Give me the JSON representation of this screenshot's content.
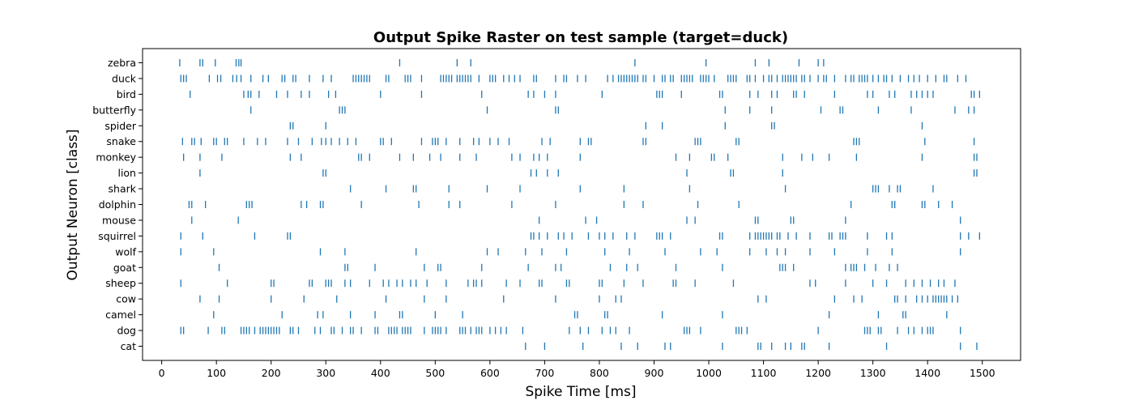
{
  "chart_data": {
    "type": "scatter",
    "title": "Output Spike Raster on test sample (target=duck)",
    "xlabel": "Spike Time [ms]",
    "ylabel": "Output Neuron [class]",
    "xlim": [
      -35,
      1570
    ],
    "xticks": [
      0,
      100,
      200,
      300,
      400,
      500,
      600,
      700,
      800,
      900,
      1000,
      1100,
      1200,
      1300,
      1400,
      1500
    ],
    "categories": [
      "cat",
      "dog",
      "camel",
      "cow",
      "sheep",
      "goat",
      "wolf",
      "squirrel",
      "mouse",
      "dolphin",
      "shark",
      "lion",
      "monkey",
      "snake",
      "spider",
      "butterfly",
      "bird",
      "duck",
      "zebra"
    ],
    "grid": false,
    "color": "#1f77b4",
    "marker": "vertical tick",
    "series": [
      {
        "category": "zebra",
        "x": [
          33,
          70,
          75,
          98,
          136,
          141,
          145,
          435,
          540,
          565,
          865,
          995,
          1085,
          1110,
          1165,
          1200,
          1210
        ]
      },
      {
        "category": "duck",
        "x": [
          35,
          40,
          45,
          87,
          102,
          108,
          130,
          137,
          145,
          163,
          185,
          195,
          220,
          225,
          240,
          245,
          270,
          295,
          310,
          350,
          355,
          360,
          365,
          370,
          375,
          380,
          410,
          415,
          445,
          450,
          455,
          475,
          510,
          515,
          520,
          525,
          530,
          540,
          545,
          550,
          555,
          560,
          565,
          580,
          600,
          605,
          610,
          625,
          635,
          645,
          655,
          680,
          685,
          720,
          735,
          740,
          760,
          775,
          815,
          825,
          835,
          840,
          845,
          850,
          855,
          860,
          865,
          870,
          880,
          885,
          900,
          915,
          920,
          930,
          935,
          950,
          955,
          960,
          965,
          970,
          985,
          990,
          995,
          1000,
          1010,
          1035,
          1040,
          1045,
          1050,
          1070,
          1075,
          1085,
          1100,
          1110,
          1115,
          1125,
          1135,
          1140,
          1145,
          1150,
          1155,
          1160,
          1170,
          1175,
          1185,
          1200,
          1210,
          1215,
          1230,
          1250,
          1260,
          1265,
          1275,
          1280,
          1285,
          1290,
          1300,
          1310,
          1320,
          1325,
          1335,
          1350,
          1365,
          1375,
          1385,
          1400,
          1415,
          1430,
          1435,
          1455,
          1470
        ]
      },
      {
        "category": "bird",
        "x": [
          52,
          150,
          158,
          163,
          178,
          210,
          230,
          255,
          270,
          305,
          318,
          400,
          475,
          585,
          670,
          680,
          700,
          720,
          805,
          905,
          910,
          915,
          950,
          1020,
          1025,
          1075,
          1090,
          1115,
          1125,
          1155,
          1160,
          1175,
          1230,
          1290,
          1300,
          1330,
          1340,
          1370,
          1380,
          1390,
          1400,
          1410,
          1480,
          1485,
          1495
        ]
      },
      {
        "category": "butterfly",
        "x": [
          163,
          325,
          330,
          335,
          595,
          720,
          725,
          1030,
          1075,
          1115,
          1205,
          1240,
          1245,
          1310,
          1370,
          1450,
          1475,
          1485
        ]
      },
      {
        "category": "spider",
        "x": [
          235,
          240,
          300,
          885,
          915,
          1030,
          1115,
          1120,
          1390
        ]
      },
      {
        "category": "snake",
        "x": [
          38,
          55,
          60,
          72,
          95,
          100,
          115,
          120,
          150,
          175,
          190,
          230,
          250,
          275,
          292,
          300,
          310,
          325,
          340,
          355,
          400,
          405,
          420,
          475,
          495,
          500,
          505,
          520,
          545,
          570,
          580,
          600,
          615,
          635,
          695,
          710,
          765,
          780,
          785,
          880,
          885,
          975,
          980,
          985,
          1050,
          1055,
          1265,
          1270,
          1275,
          1395,
          1485
        ]
      },
      {
        "category": "monkey",
        "x": [
          40,
          70,
          110,
          235,
          255,
          360,
          365,
          380,
          435,
          460,
          490,
          510,
          545,
          575,
          640,
          655,
          680,
          690,
          705,
          765,
          940,
          965,
          1005,
          1010,
          1035,
          1135,
          1170,
          1190,
          1220,
          1270,
          1390,
          1485,
          1490
        ]
      },
      {
        "category": "lion",
        "x": [
          70,
          295,
          300,
          675,
          685,
          705,
          725,
          960,
          1040,
          1045,
          1135,
          1485,
          1490
        ]
      },
      {
        "category": "shark",
        "x": [
          345,
          410,
          460,
          465,
          525,
          595,
          655,
          765,
          845,
          965,
          1140,
          1300,
          1305,
          1310,
          1330,
          1345,
          1350,
          1410
        ]
      },
      {
        "category": "dolphin",
        "x": [
          50,
          55,
          80,
          155,
          160,
          165,
          255,
          265,
          290,
          295,
          365,
          470,
          525,
          545,
          640,
          720,
          845,
          880,
          980,
          1055,
          1260,
          1335,
          1340,
          1390,
          1395,
          1420,
          1445
        ]
      },
      {
        "category": "mouse",
        "x": [
          55,
          140,
          690,
          775,
          795,
          960,
          975,
          1085,
          1090,
          1150,
          1155,
          1250,
          1460
        ]
      },
      {
        "category": "squirrel",
        "x": [
          35,
          75,
          170,
          230,
          235,
          675,
          680,
          690,
          705,
          725,
          735,
          750,
          780,
          800,
          810,
          825,
          850,
          865,
          905,
          910,
          915,
          930,
          1020,
          1025,
          1075,
          1085,
          1090,
          1095,
          1100,
          1105,
          1110,
          1115,
          1125,
          1130,
          1145,
          1160,
          1185,
          1220,
          1225,
          1240,
          1245,
          1250,
          1290,
          1325,
          1335,
          1460,
          1475,
          1495
        ]
      },
      {
        "category": "wolf",
        "x": [
          35,
          95,
          290,
          335,
          465,
          595,
          615,
          665,
          695,
          740,
          810,
          855,
          920,
          985,
          1015,
          1075,
          1105,
          1125,
          1140,
          1185,
          1230,
          1290,
          1335,
          1460
        ]
      },
      {
        "category": "goat",
        "x": [
          105,
          335,
          340,
          390,
          480,
          505,
          510,
          585,
          670,
          720,
          730,
          820,
          850,
          870,
          940,
          1025,
          1130,
          1135,
          1140,
          1155,
          1250,
          1260,
          1265,
          1270,
          1285,
          1305,
          1330,
          1345
        ]
      },
      {
        "category": "sheep",
        "x": [
          35,
          120,
          200,
          205,
          270,
          275,
          300,
          305,
          310,
          335,
          345,
          380,
          405,
          415,
          430,
          440,
          455,
          465,
          485,
          520,
          560,
          570,
          575,
          585,
          630,
          655,
          690,
          695,
          740,
          745,
          800,
          805,
          845,
          880,
          935,
          940,
          975,
          1045,
          1185,
          1195,
          1250,
          1300,
          1325,
          1360,
          1375,
          1390,
          1405,
          1420,
          1430,
          1450
        ]
      },
      {
        "category": "cow",
        "x": [
          70,
          105,
          200,
          260,
          320,
          410,
          480,
          520,
          625,
          720,
          800,
          830,
          840,
          1090,
          1105,
          1230,
          1265,
          1280,
          1340,
          1345,
          1360,
          1380,
          1390,
          1400,
          1410,
          1415,
          1420,
          1425,
          1430,
          1435,
          1445,
          1455
        ]
      },
      {
        "category": "camel",
        "x": [
          95,
          220,
          285,
          295,
          345,
          390,
          435,
          440,
          500,
          550,
          755,
          760,
          810,
          815,
          915,
          1025,
          1220,
          1310,
          1355,
          1360,
          1435
        ]
      },
      {
        "category": "dog",
        "x": [
          35,
          40,
          85,
          110,
          115,
          145,
          150,
          155,
          160,
          170,
          180,
          185,
          190,
          195,
          200,
          205,
          210,
          215,
          235,
          240,
          250,
          280,
          290,
          310,
          315,
          330,
          345,
          350,
          365,
          390,
          395,
          415,
          420,
          425,
          430,
          440,
          445,
          450,
          455,
          480,
          495,
          500,
          505,
          510,
          520,
          545,
          550,
          555,
          565,
          575,
          580,
          585,
          600,
          610,
          620,
          630,
          660,
          745,
          765,
          780,
          805,
          820,
          830,
          855,
          955,
          960,
          965,
          985,
          1050,
          1055,
          1060,
          1070,
          1200,
          1285,
          1290,
          1295,
          1310,
          1315,
          1345,
          1365,
          1375,
          1390,
          1400,
          1405,
          1410,
          1460
        ]
      },
      {
        "category": "cat",
        "x": [
          665,
          700,
          770,
          840,
          870,
          920,
          930,
          1025,
          1090,
          1095,
          1115,
          1140,
          1150,
          1170,
          1175,
          1220,
          1325,
          1460,
          1490
        ]
      }
    ]
  }
}
